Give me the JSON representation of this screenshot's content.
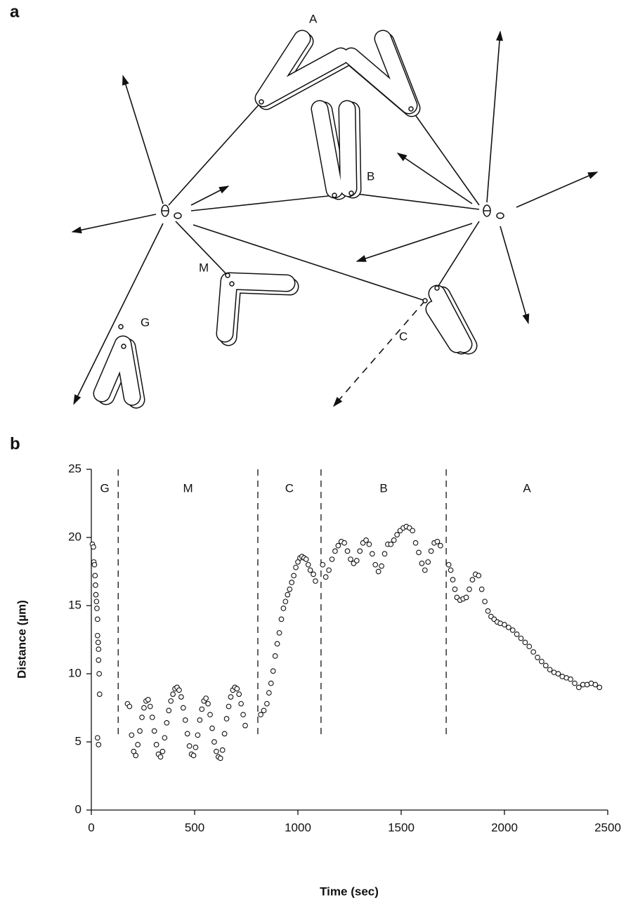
{
  "panel_labels": [
    "a",
    "b"
  ],
  "diagram": {
    "labels": [
      "A",
      "B",
      "M",
      "G",
      "C"
    ]
  },
  "chart_data": {
    "type": "scatter",
    "ylabel": "Distance (µm)",
    "xlabel": "Time (sec)",
    "xlim": [
      0,
      2500
    ],
    "ylim": [
      0,
      25
    ],
    "xticks": [
      0,
      500,
      1000,
      1500,
      2000,
      2500
    ],
    "yticks": [
      0,
      5,
      10,
      15,
      20,
      25
    ],
    "dividers": [
      130,
      806,
      1112,
      1718
    ],
    "phase_labels": [
      "G",
      "M",
      "C",
      "B",
      "A"
    ],
    "series": [
      {
        "color": "#ffffff",
        "x": [
          5,
          10,
          12,
          15,
          18,
          20,
          22,
          25,
          27,
          30,
          30,
          33,
          35,
          35,
          38,
          40,
          30,
          35,
          175,
          185,
          195,
          205,
          215,
          225,
          235,
          245,
          255,
          265,
          275,
          285,
          295,
          305,
          315,
          325,
          335,
          345,
          355,
          365,
          375,
          385,
          395,
          405,
          415,
          425,
          435,
          445,
          455,
          465,
          475,
          485,
          495,
          505,
          515,
          525,
          535,
          545,
          555,
          565,
          575,
          585,
          595,
          605,
          615,
          625,
          635,
          645,
          655,
          665,
          675,
          685,
          695,
          705,
          715,
          725,
          735,
          745,
          820,
          835,
          850,
          860,
          870,
          880,
          890,
          900,
          910,
          920,
          930,
          940,
          950,
          960,
          970,
          980,
          990,
          1000,
          1010,
          1020,
          1030,
          1040,
          1050,
          1060,
          1075,
          1085,
          1120,
          1135,
          1150,
          1165,
          1180,
          1195,
          1210,
          1225,
          1240,
          1255,
          1270,
          1285,
          1300,
          1315,
          1330,
          1345,
          1360,
          1375,
          1390,
          1405,
          1420,
          1435,
          1450,
          1465,
          1480,
          1495,
          1510,
          1525,
          1540,
          1555,
          1570,
          1585,
          1600,
          1615,
          1630,
          1645,
          1660,
          1675,
          1690,
          1730,
          1740,
          1750,
          1760,
          1770,
          1785,
          1800,
          1815,
          1830,
          1845,
          1860,
          1875,
          1890,
          1905,
          1920,
          1935,
          1950,
          1965,
          1980,
          2000,
          2020,
          2040,
          2060,
          2080,
          2100,
          2120,
          2140,
          2160,
          2180,
          2200,
          2220,
          2240,
          2260,
          2280,
          2300,
          2320,
          2340,
          2360,
          2380,
          2400,
          2420,
          2440,
          2460
        ],
        "values": [
          19.5,
          19.3,
          18.2,
          18,
          17.2,
          16.5,
          15.8,
          15.3,
          14.8,
          14,
          12.8,
          12.3,
          11.8,
          11,
          10,
          8.5,
          5.3,
          4.8,
          7.8,
          7.6,
          5.5,
          4.3,
          4,
          4.8,
          5.8,
          6.8,
          7.5,
          8,
          8.1,
          7.6,
          6.8,
          5.8,
          4.8,
          4.1,
          3.9,
          4.3,
          5.3,
          6.4,
          7.3,
          8,
          8.5,
          8.9,
          9,
          8.8,
          8.3,
          7.5,
          6.6,
          5.6,
          4.7,
          4.1,
          4,
          4.6,
          5.5,
          6.6,
          7.4,
          8,
          8.2,
          7.8,
          7,
          6,
          5,
          4.3,
          3.9,
          3.8,
          4.4,
          5.6,
          6.7,
          7.6,
          8.3,
          8.8,
          9,
          8.9,
          8.5,
          7.8,
          7,
          6.2,
          7,
          7.3,
          7.8,
          8.6,
          9.3,
          10.2,
          11.3,
          12.2,
          13,
          14,
          14.8,
          15.3,
          15.8,
          16.2,
          16.7,
          17.2,
          17.8,
          18.2,
          18.5,
          18.6,
          18.5,
          18.4,
          18,
          17.6,
          17.3,
          16.8,
          18,
          17.1,
          17.6,
          18.4,
          19,
          19.4,
          19.7,
          19.6,
          19,
          18.4,
          18.1,
          18.3,
          19,
          19.6,
          19.8,
          19.5,
          18.8,
          18,
          17.5,
          17.9,
          18.8,
          19.5,
          19.5,
          19.8,
          20.2,
          20.5,
          20.7,
          20.8,
          20.7,
          20.5,
          19.6,
          18.9,
          18.1,
          17.6,
          18.2,
          19,
          19.6,
          19.7,
          19.4,
          18,
          17.6,
          16.9,
          16.2,
          15.6,
          15.4,
          15.5,
          15.6,
          16.2,
          16.9,
          17.3,
          17.2,
          16.2,
          15.3,
          14.6,
          14.2,
          14,
          13.8,
          13.7,
          13.6,
          13.4,
          13.2,
          12.9,
          12.6,
          12.3,
          12,
          11.6,
          11.2,
          10.9,
          10.6,
          10.3,
          10.1,
          10,
          9.8,
          9.7,
          9.6,
          9.3,
          9,
          9.2,
          9.2,
          9.3,
          9.2,
          9
        ]
      }
    ]
  }
}
